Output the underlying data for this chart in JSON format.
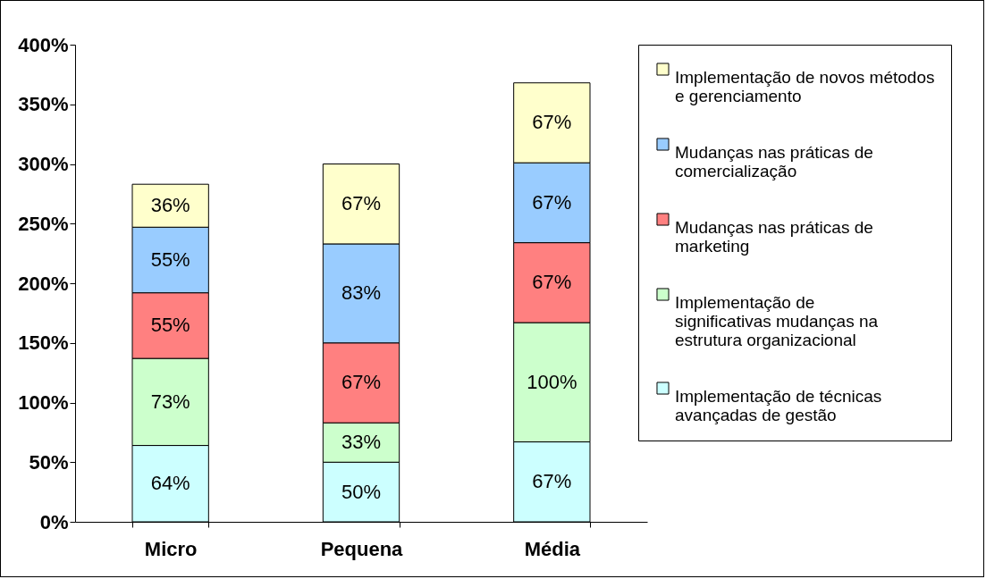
{
  "chart_data": {
    "type": "bar",
    "stacked": true,
    "categories": [
      "Micro",
      "Pequena",
      "Média"
    ],
    "series": [
      {
        "name": "Implementação de técnicas avançadas de gestão",
        "color": "#ccffff",
        "values": [
          64,
          50,
          67
        ],
        "value_labels": [
          "64%",
          "50%",
          "67%"
        ]
      },
      {
        "name": "Implementação de significativas mudanças na estrutura organizacional",
        "color": "#ccffcc",
        "values": [
          73,
          33,
          100
        ],
        "value_labels": [
          "73%",
          "33%",
          "100%"
        ]
      },
      {
        "name": "Mudanças nas práticas de marketing",
        "color": "#ff8080",
        "values": [
          55,
          67,
          67
        ],
        "value_labels": [
          "55%",
          "67%",
          "67%"
        ]
      },
      {
        "name": "Mudanças nas práticas de comercialização",
        "color": "#99ccff",
        "values": [
          55,
          83,
          67
        ],
        "value_labels": [
          "55%",
          "83%",
          "67%"
        ]
      },
      {
        "name": "Implementação de novos métodos e gerenciamento",
        "color": "#ffffcc",
        "values": [
          36,
          67,
          67
        ],
        "value_labels": [
          "36%",
          "67%",
          "67%"
        ]
      }
    ],
    "ylim": [
      0,
      400
    ],
    "yticks": [
      {
        "value": 0,
        "label": "0%"
      },
      {
        "value": 50,
        "label": "50%"
      },
      {
        "value": 100,
        "label": "100%"
      },
      {
        "value": 150,
        "label": "150%"
      },
      {
        "value": 200,
        "label": "200%"
      },
      {
        "value": 250,
        "label": "250%"
      },
      {
        "value": 300,
        "label": "300%"
      },
      {
        "value": 350,
        "label": "350%"
      },
      {
        "value": 400,
        "label": "400%"
      }
    ],
    "grid": false,
    "legend": "right"
  }
}
